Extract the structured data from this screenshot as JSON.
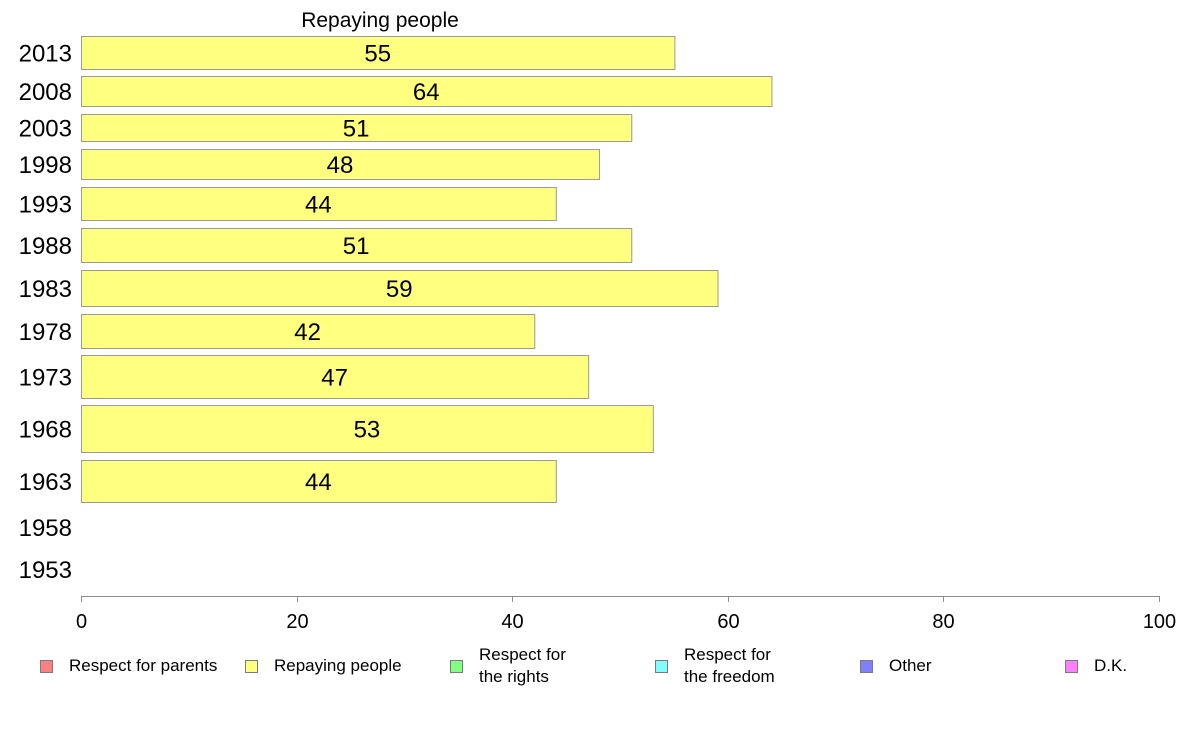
{
  "chart_data": {
    "type": "bar",
    "orientation": "horizontal",
    "title": "Repaying people",
    "categories": [
      "2013",
      "2008",
      "2003",
      "1998",
      "1993",
      "1988",
      "1983",
      "1978",
      "1973",
      "1968",
      "1963",
      "1958",
      "1953"
    ],
    "series": [
      {
        "name": "Repaying people",
        "color": "#ffff80",
        "values": [
          55,
          64,
          51,
          48,
          44,
          51,
          59,
          42,
          47,
          53,
          44,
          null,
          null
        ]
      }
    ],
    "xlim": [
      0,
      100
    ],
    "xticks": [
      0,
      20,
      40,
      60,
      80,
      100
    ],
    "grid": false,
    "legend_position": "bottom",
    "legend": [
      {
        "label": "Respect for parents",
        "color": "#ff8080"
      },
      {
        "label": "Repaying people",
        "color": "#ffff80"
      },
      {
        "label": "Respect for\nthe rights",
        "color": "#80ff80"
      },
      {
        "label": "Respect for\nthe freedom",
        "color": "#80ffff"
      },
      {
        "label": "Other",
        "color": "#8080ff"
      },
      {
        "label": "D.K.",
        "color": "#ff80ff"
      }
    ]
  }
}
